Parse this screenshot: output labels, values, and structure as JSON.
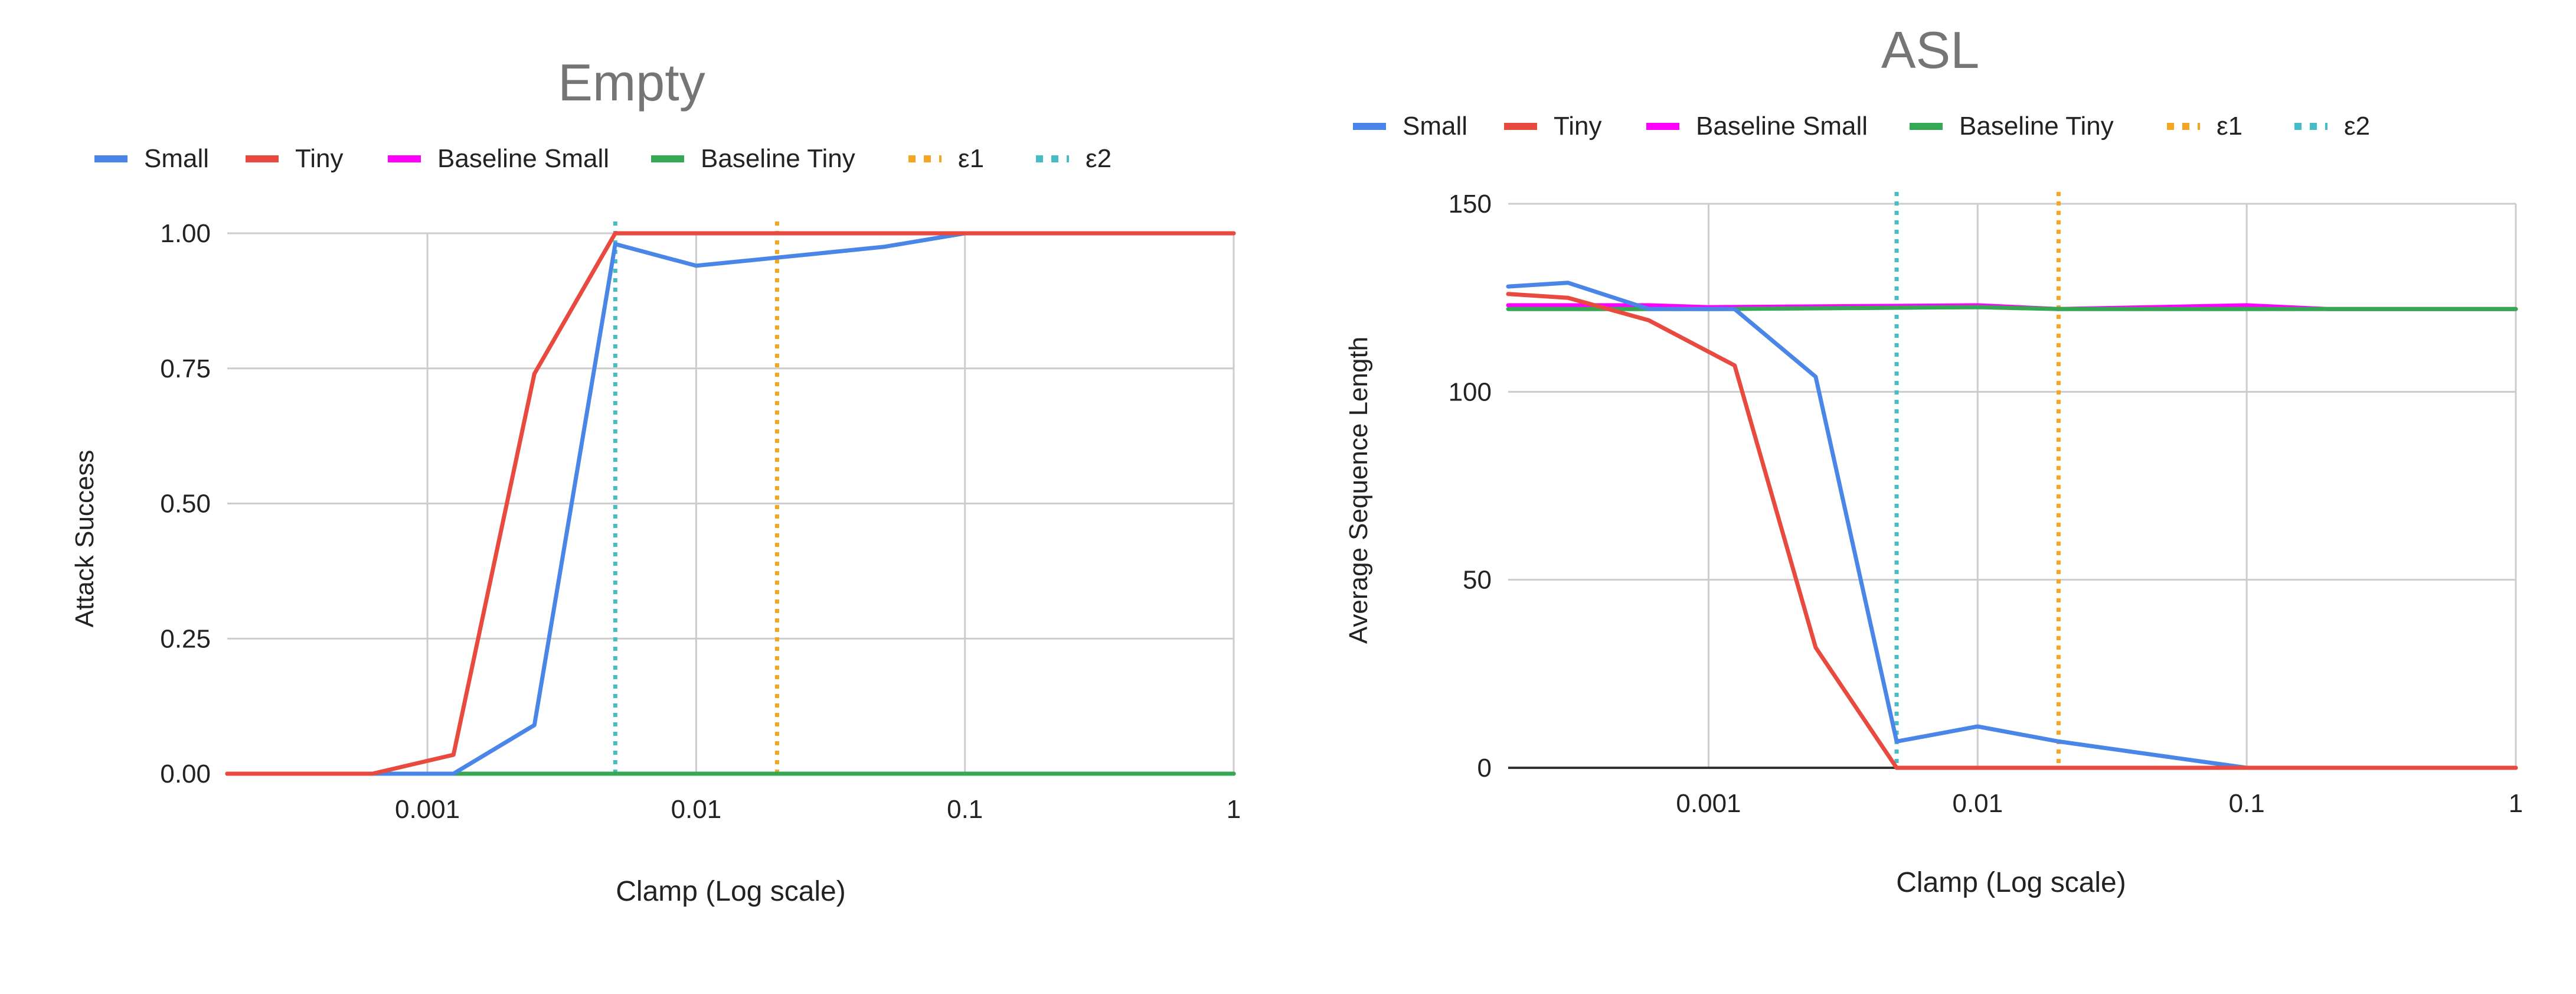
{
  "colors": {
    "small": "#4A86E8",
    "tiny": "#E84A3F",
    "baseline_small": "#FF00FF",
    "baseline_tiny": "#34A853",
    "eps1": "#F4A523",
    "eps2": "#46BDC6",
    "grid": "#CCCCCC",
    "title": "#757575",
    "text": "#222222"
  },
  "chart_data": [
    {
      "type": "line",
      "title": "Empty",
      "xlabel": "Clamp (Log scale)",
      "ylabel": "Attack Success",
      "xscale": "log",
      "xlim": [
        0.00018,
        1
      ],
      "ylim": [
        0,
        1
      ],
      "xticks": [
        0.001,
        0.01,
        0.1,
        1
      ],
      "xtick_labels": [
        "0.001",
        "0.01",
        "0.1",
        "1"
      ],
      "yticks": [
        0,
        0.25,
        0.5,
        0.75,
        1
      ],
      "ytick_labels": [
        "0.00",
        "0.25",
        "0.50",
        "0.75",
        "1.00"
      ],
      "legend": [
        "Small",
        "Tiny",
        "Baseline Small",
        "Baseline Tiny",
        "ε1",
        "ε2"
      ],
      "series": [
        {
          "name": "Small",
          "key": "small",
          "x": [
            0.00018,
            0.00125,
            0.0025,
            0.005,
            0.01,
            0.02,
            0.05,
            0.1,
            0.2,
            0.5,
            1
          ],
          "y": [
            0,
            0,
            0.09,
            0.98,
            0.94,
            0.955,
            0.975,
            1,
            1,
            1,
            1
          ]
        },
        {
          "name": "Tiny",
          "key": "tiny",
          "x": [
            0.00018,
            0.000625,
            0.00125,
            0.0025,
            0.005,
            0.01,
            0.1,
            1
          ],
          "y": [
            0,
            0,
            0.035,
            0.74,
            1,
            1,
            1,
            1
          ]
        },
        {
          "name": "Baseline Small",
          "key": "baseline_small",
          "x": [
            0.00018,
            1
          ],
          "y": [
            0,
            0
          ]
        },
        {
          "name": "Baseline Tiny",
          "key": "baseline_tiny",
          "x": [
            0.00018,
            1
          ],
          "y": [
            0,
            0
          ]
        }
      ],
      "vlines": [
        {
          "name": "ε1",
          "key": "eps1",
          "x": 0.02
        },
        {
          "name": "ε2",
          "key": "eps2",
          "x": 0.005
        }
      ]
    },
    {
      "type": "line",
      "title": "ASL",
      "xlabel": "Clamp (Log scale)",
      "ylabel": "Average Sequence Length",
      "xscale": "log",
      "xlim": [
        0.00018,
        1
      ],
      "ylim": [
        0,
        150
      ],
      "xticks": [
        0.001,
        0.01,
        0.1,
        1
      ],
      "xtick_labels": [
        "0.001",
        "0.01",
        "0.1",
        "1"
      ],
      "yticks": [
        0,
        50,
        100,
        150
      ],
      "ytick_labels": [
        "0",
        "50",
        "100",
        "150"
      ],
      "legend": [
        "Small",
        "Tiny",
        "Baseline Small",
        "Baseline Tiny",
        "ε1",
        "ε2"
      ],
      "series": [
        {
          "name": "Small",
          "key": "small",
          "x": [
            0.00018,
            0.0003,
            0.0006,
            0.00125,
            0.0025,
            0.005,
            0.01,
            0.02,
            0.05,
            0.1,
            0.2,
            0.5,
            1
          ],
          "y": [
            128,
            129,
            122,
            122,
            104,
            7,
            11,
            7,
            3,
            0,
            0,
            0,
            0
          ]
        },
        {
          "name": "Tiny",
          "key": "tiny",
          "x": [
            0.00018,
            0.0003,
            0.0006,
            0.00125,
            0.0025,
            0.005,
            0.01,
            0.1,
            1
          ],
          "y": [
            126,
            125,
            119,
            107,
            32,
            0,
            0,
            0,
            0
          ]
        },
        {
          "name": "Baseline Small",
          "key": "baseline_small",
          "x": [
            0.00018,
            0.0006,
            0.001,
            0.01,
            0.02,
            0.1,
            0.2,
            1
          ],
          "y": [
            123,
            123,
            122.5,
            123,
            122,
            123,
            122,
            122
          ]
        },
        {
          "name": "Baseline Tiny",
          "key": "baseline_tiny",
          "x": [
            0.00018,
            0.0006,
            0.001,
            0.01,
            0.02,
            0.1,
            0.2,
            1
          ],
          "y": [
            122,
            122,
            122,
            122.5,
            122,
            122,
            122,
            122
          ]
        }
      ],
      "vlines": [
        {
          "name": "ε1",
          "key": "eps1",
          "x": 0.02
        },
        {
          "name": "ε2",
          "key": "eps2",
          "x": 0.005
        }
      ]
    }
  ]
}
